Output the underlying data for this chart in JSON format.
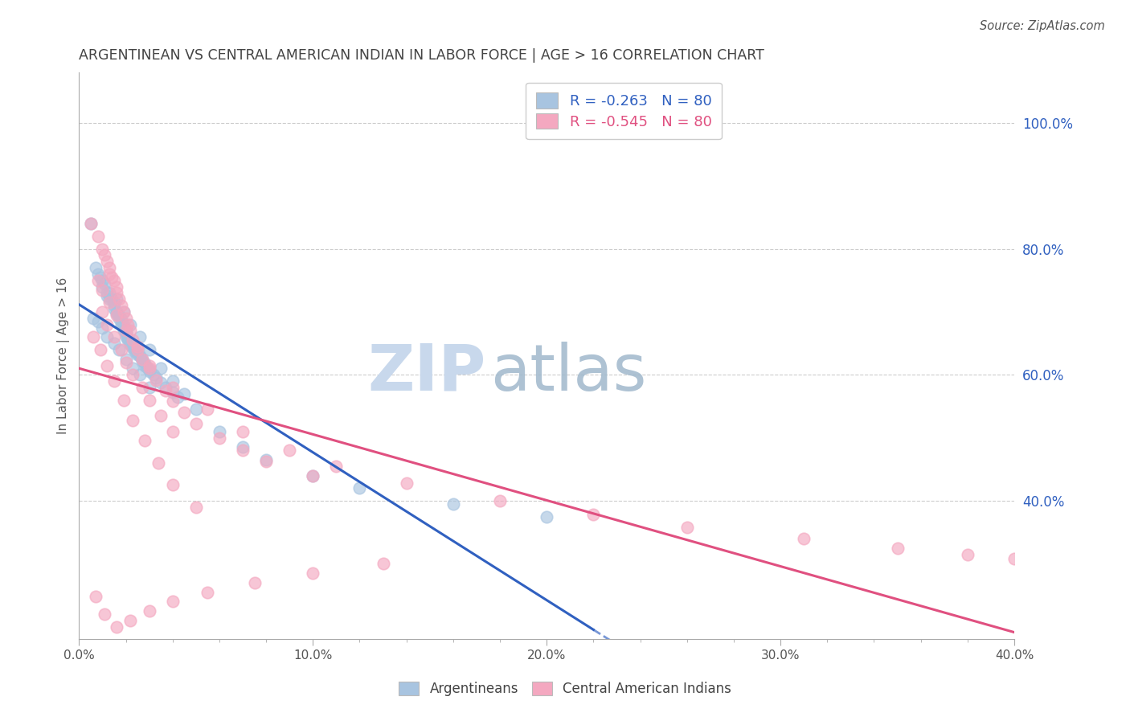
{
  "title": "ARGENTINEAN VS CENTRAL AMERICAN INDIAN IN LABOR FORCE | AGE > 16 CORRELATION CHART",
  "source": "Source: ZipAtlas.com",
  "ylabel": "In Labor Force | Age > 16",
  "xlim": [
    0.0,
    0.4
  ],
  "ylim": [
    0.18,
    1.08
  ],
  "xtick_labels": [
    "0.0%",
    "",
    "",
    "",
    "",
    "10.0%",
    "",
    "",
    "",
    "",
    "20.0%",
    "",
    "",
    "",
    "",
    "30.0%",
    "",
    "",
    "",
    "",
    "40.0%"
  ],
  "xtick_vals": [
    0.0,
    0.02,
    0.04,
    0.06,
    0.08,
    0.1,
    0.12,
    0.14,
    0.16,
    0.18,
    0.2,
    0.22,
    0.24,
    0.26,
    0.28,
    0.3,
    0.32,
    0.34,
    0.36,
    0.38,
    0.4
  ],
  "ytick_labels_right": [
    "40.0%",
    "60.0%",
    "80.0%",
    "100.0%"
  ],
  "ytick_vals": [
    0.4,
    0.6,
    0.8,
    1.0
  ],
  "legend_labels": [
    "Argentineans",
    "Central American Indians"
  ],
  "R_blue": -0.263,
  "N_blue": 80,
  "R_pink": -0.545,
  "N_pink": 80,
  "blue_color": "#a8c4e0",
  "pink_color": "#f4a8c0",
  "blue_line_color": "#3060c0",
  "pink_line_color": "#e05080",
  "blue_scatter_x": [
    0.005,
    0.008,
    0.01,
    0.01,
    0.012,
    0.012,
    0.013,
    0.014,
    0.015,
    0.015,
    0.015,
    0.016,
    0.016,
    0.017,
    0.017,
    0.018,
    0.018,
    0.018,
    0.019,
    0.019,
    0.019,
    0.019,
    0.02,
    0.02,
    0.02,
    0.021,
    0.021,
    0.022,
    0.022,
    0.022,
    0.023,
    0.023,
    0.024,
    0.024,
    0.025,
    0.025,
    0.026,
    0.027,
    0.027,
    0.028,
    0.028,
    0.029,
    0.03,
    0.03,
    0.032,
    0.033,
    0.035,
    0.037,
    0.04,
    0.042,
    0.006,
    0.008,
    0.01,
    0.012,
    0.015,
    0.017,
    0.02,
    0.023,
    0.026,
    0.03,
    0.007,
    0.009,
    0.011,
    0.013,
    0.016,
    0.019,
    0.022,
    0.026,
    0.03,
    0.035,
    0.04,
    0.045,
    0.05,
    0.06,
    0.07,
    0.08,
    0.1,
    0.12,
    0.16,
    0.2
  ],
  "blue_scatter_y": [
    0.84,
    0.76,
    0.75,
    0.74,
    0.73,
    0.725,
    0.72,
    0.72,
    0.715,
    0.71,
    0.705,
    0.7,
    0.698,
    0.695,
    0.69,
    0.688,
    0.685,
    0.68,
    0.678,
    0.675,
    0.673,
    0.67,
    0.668,
    0.665,
    0.66,
    0.658,
    0.655,
    0.652,
    0.65,
    0.648,
    0.645,
    0.642,
    0.64,
    0.638,
    0.635,
    0.632,
    0.63,
    0.625,
    0.622,
    0.618,
    0.615,
    0.612,
    0.608,
    0.605,
    0.6,
    0.595,
    0.588,
    0.58,
    0.572,
    0.565,
    0.69,
    0.685,
    0.675,
    0.66,
    0.65,
    0.64,
    0.625,
    0.61,
    0.6,
    0.58,
    0.77,
    0.755,
    0.745,
    0.73,
    0.72,
    0.7,
    0.68,
    0.66,
    0.64,
    0.61,
    0.59,
    0.57,
    0.545,
    0.51,
    0.485,
    0.465,
    0.44,
    0.42,
    0.395,
    0.375
  ],
  "pink_scatter_x": [
    0.005,
    0.008,
    0.01,
    0.011,
    0.012,
    0.013,
    0.013,
    0.014,
    0.015,
    0.016,
    0.016,
    0.017,
    0.018,
    0.019,
    0.02,
    0.021,
    0.022,
    0.023,
    0.025,
    0.027,
    0.03,
    0.033,
    0.037,
    0.04,
    0.045,
    0.05,
    0.06,
    0.07,
    0.08,
    0.1,
    0.01,
    0.012,
    0.015,
    0.018,
    0.02,
    0.023,
    0.027,
    0.03,
    0.035,
    0.04,
    0.008,
    0.01,
    0.013,
    0.016,
    0.02,
    0.025,
    0.03,
    0.04,
    0.055,
    0.07,
    0.09,
    0.11,
    0.14,
    0.18,
    0.22,
    0.26,
    0.31,
    0.35,
    0.38,
    0.4,
    0.006,
    0.009,
    0.012,
    0.015,
    0.019,
    0.023,
    0.028,
    0.034,
    0.04,
    0.05,
    0.007,
    0.011,
    0.016,
    0.022,
    0.03,
    0.04,
    0.055,
    0.075,
    0.1,
    0.13
  ],
  "pink_scatter_y": [
    0.84,
    0.82,
    0.8,
    0.79,
    0.78,
    0.77,
    0.76,
    0.755,
    0.75,
    0.74,
    0.73,
    0.72,
    0.71,
    0.7,
    0.69,
    0.68,
    0.67,
    0.655,
    0.64,
    0.625,
    0.61,
    0.592,
    0.575,
    0.558,
    0.54,
    0.522,
    0.5,
    0.48,
    0.462,
    0.44,
    0.7,
    0.68,
    0.66,
    0.64,
    0.62,
    0.6,
    0.58,
    0.56,
    0.535,
    0.51,
    0.75,
    0.735,
    0.715,
    0.695,
    0.67,
    0.645,
    0.615,
    0.58,
    0.545,
    0.51,
    0.48,
    0.455,
    0.428,
    0.4,
    0.378,
    0.358,
    0.34,
    0.325,
    0.315,
    0.308,
    0.66,
    0.64,
    0.615,
    0.59,
    0.56,
    0.528,
    0.496,
    0.46,
    0.425,
    0.39,
    0.248,
    0.22,
    0.2,
    0.21,
    0.225,
    0.24,
    0.255,
    0.27,
    0.285,
    0.3
  ],
  "background_color": "#ffffff",
  "grid_color": "#cccccc",
  "watermark_text": "ZIP",
  "watermark_text2": "atlas",
  "watermark_color_zip": "#c8d8ec",
  "watermark_color_atlas": "#a0b8cc"
}
